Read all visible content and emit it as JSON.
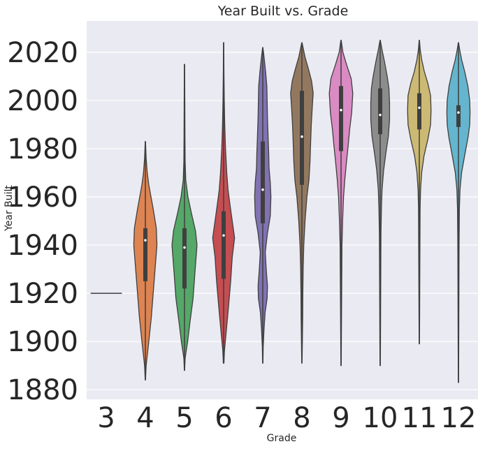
{
  "chart_data": {
    "type": "violin",
    "title": "Year Built vs. Grade",
    "xlabel": "Grade",
    "ylabel": "Year Built",
    "ylim": [
      1876,
      2033
    ],
    "yticks": [
      1880,
      1900,
      1920,
      1940,
      1960,
      1980,
      2000,
      2020
    ],
    "grid": true,
    "categories": [
      "3",
      "4",
      "5",
      "6",
      "7",
      "8",
      "9",
      "10",
      "11",
      "12"
    ],
    "series": [
      {
        "grade": "3",
        "color": "#4c72b0",
        "min": 1920,
        "max": 1920,
        "q1": 1920,
        "median": 1920,
        "q3": 1920,
        "profile": [
          [
            1920,
            1.0
          ]
        ],
        "flat": true
      },
      {
        "grade": "4",
        "color": "#dd8452",
        "min": 1884,
        "max": 1983,
        "q1": 1925,
        "median": 1942,
        "q3": 1947,
        "profile": [
          [
            1884,
            0.01
          ],
          [
            1890,
            0.05
          ],
          [
            1900,
            0.22
          ],
          [
            1910,
            0.38
          ],
          [
            1920,
            0.5
          ],
          [
            1930,
            0.62
          ],
          [
            1940,
            0.74
          ],
          [
            1947,
            0.7
          ],
          [
            1955,
            0.5
          ],
          [
            1960,
            0.36
          ],
          [
            1965,
            0.22
          ],
          [
            1970,
            0.12
          ],
          [
            1976,
            0.05
          ],
          [
            1983,
            0.01
          ]
        ]
      },
      {
        "grade": "5",
        "color": "#55a868",
        "min": 1888,
        "max": 2015,
        "q1": 1922,
        "median": 1939,
        "q3": 1947,
        "profile": [
          [
            1888,
            0.01
          ],
          [
            1893,
            0.04
          ],
          [
            1900,
            0.2
          ],
          [
            1908,
            0.35
          ],
          [
            1918,
            0.55
          ],
          [
            1928,
            0.66
          ],
          [
            1940,
            0.8
          ],
          [
            1946,
            0.7
          ],
          [
            1953,
            0.45
          ],
          [
            1960,
            0.22
          ],
          [
            1967,
            0.08
          ],
          [
            1975,
            0.04
          ],
          [
            1985,
            0.03
          ],
          [
            2000,
            0.02
          ],
          [
            2015,
            0.01
          ]
        ]
      },
      {
        "grade": "6",
        "color": "#c44e52",
        "min": 1891,
        "max": 2024,
        "q1": 1926,
        "median": 1944,
        "q3": 1954,
        "profile": [
          [
            1891,
            0.02
          ],
          [
            1896,
            0.05
          ],
          [
            1905,
            0.18
          ],
          [
            1915,
            0.32
          ],
          [
            1925,
            0.45
          ],
          [
            1935,
            0.55
          ],
          [
            1943,
            0.7
          ],
          [
            1950,
            0.55
          ],
          [
            1957,
            0.4
          ],
          [
            1963,
            0.28
          ],
          [
            1970,
            0.2
          ],
          [
            1980,
            0.12
          ],
          [
            1990,
            0.07
          ],
          [
            2000,
            0.04
          ],
          [
            2012,
            0.02
          ],
          [
            2024,
            0.01
          ]
        ]
      },
      {
        "grade": "7",
        "color": "#8172b2",
        "min": 1891,
        "max": 2022,
        "q1": 1949,
        "median": 1963,
        "q3": 1983,
        "profile": [
          [
            1891,
            0.01
          ],
          [
            1898,
            0.03
          ],
          [
            1905,
            0.08
          ],
          [
            1912,
            0.15
          ],
          [
            1918,
            0.28
          ],
          [
            1923,
            0.3
          ],
          [
            1930,
            0.22
          ],
          [
            1937,
            0.16
          ],
          [
            1945,
            0.3
          ],
          [
            1952,
            0.48
          ],
          [
            1960,
            0.52
          ],
          [
            1966,
            0.48
          ],
          [
            1972,
            0.4
          ],
          [
            1978,
            0.38
          ],
          [
            1985,
            0.34
          ],
          [
            1993,
            0.3
          ],
          [
            2000,
            0.28
          ],
          [
            2006,
            0.26
          ],
          [
            2012,
            0.18
          ],
          [
            2017,
            0.1
          ],
          [
            2022,
            0.01
          ]
        ]
      },
      {
        "grade": "8",
        "color": "#937860",
        "min": 1891,
        "max": 2024,
        "q1": 1965,
        "median": 1985,
        "q3": 2004,
        "profile": [
          [
            1891,
            0.01
          ],
          [
            1900,
            0.03
          ],
          [
            1910,
            0.05
          ],
          [
            1920,
            0.06
          ],
          [
            1930,
            0.08
          ],
          [
            1940,
            0.12
          ],
          [
            1950,
            0.2
          ],
          [
            1960,
            0.32
          ],
          [
            1967,
            0.45
          ],
          [
            1975,
            0.52
          ],
          [
            1983,
            0.56
          ],
          [
            1990,
            0.6
          ],
          [
            1997,
            0.66
          ],
          [
            2003,
            0.72
          ],
          [
            2008,
            0.62
          ],
          [
            2013,
            0.42
          ],
          [
            2018,
            0.2
          ],
          [
            2024,
            0.01
          ]
        ]
      },
      {
        "grade": "9",
        "color": "#da8bc3",
        "min": 1890,
        "max": 2025,
        "q1": 1979,
        "median": 1996,
        "q3": 2006,
        "profile": [
          [
            1890,
            0.01
          ],
          [
            1900,
            0.02
          ],
          [
            1910,
            0.03
          ],
          [
            1920,
            0.04
          ],
          [
            1930,
            0.05
          ],
          [
            1940,
            0.06
          ],
          [
            1950,
            0.1
          ],
          [
            1960,
            0.16
          ],
          [
            1967,
            0.24
          ],
          [
            1974,
            0.34
          ],
          [
            1981,
            0.45
          ],
          [
            1988,
            0.55
          ],
          [
            1995,
            0.68
          ],
          [
            2003,
            0.75
          ],
          [
            2009,
            0.65
          ],
          [
            2015,
            0.35
          ],
          [
            2020,
            0.12
          ],
          [
            2025,
            0.01
          ]
        ]
      },
      {
        "grade": "10",
        "color": "#8c8c8c",
        "min": 1890,
        "max": 2025,
        "q1": 1986,
        "median": 1994,
        "q3": 2005,
        "profile": [
          [
            1890,
            0.01
          ],
          [
            1900,
            0.02
          ],
          [
            1915,
            0.03
          ],
          [
            1930,
            0.04
          ],
          [
            1945,
            0.05
          ],
          [
            1955,
            0.08
          ],
          [
            1963,
            0.12
          ],
          [
            1971,
            0.22
          ],
          [
            1978,
            0.36
          ],
          [
            1985,
            0.52
          ],
          [
            1992,
            0.6
          ],
          [
            1999,
            0.6
          ],
          [
            2005,
            0.56
          ],
          [
            2010,
            0.45
          ],
          [
            2016,
            0.28
          ],
          [
            2021,
            0.12
          ],
          [
            2025,
            0.01
          ]
        ]
      },
      {
        "grade": "11",
        "color": "#ccb974",
        "min": 1899,
        "max": 2025,
        "q1": 1988,
        "median": 1997,
        "q3": 2003,
        "profile": [
          [
            1899,
            0.01
          ],
          [
            1910,
            0.02
          ],
          [
            1925,
            0.03
          ],
          [
            1940,
            0.04
          ],
          [
            1955,
            0.05
          ],
          [
            1963,
            0.08
          ],
          [
            1970,
            0.15
          ],
          [
            1977,
            0.3
          ],
          [
            1984,
            0.55
          ],
          [
            1990,
            0.72
          ],
          [
            1996,
            0.75
          ],
          [
            2002,
            0.72
          ],
          [
            2007,
            0.55
          ],
          [
            2012,
            0.32
          ],
          [
            2017,
            0.15
          ],
          [
            2021,
            0.06
          ],
          [
            2025,
            0.01
          ]
        ]
      },
      {
        "grade": "12",
        "color": "#64b5cd",
        "min": 1883,
        "max": 2024,
        "q1": 1989,
        "median": 1995,
        "q3": 1998,
        "profile": [
          [
            1883,
            0.01
          ],
          [
            1900,
            0.02
          ],
          [
            1920,
            0.03
          ],
          [
            1940,
            0.04
          ],
          [
            1955,
            0.06
          ],
          [
            1963,
            0.1
          ],
          [
            1970,
            0.2
          ],
          [
            1978,
            0.42
          ],
          [
            1985,
            0.62
          ],
          [
            1990,
            0.72
          ],
          [
            1995,
            0.74
          ],
          [
            2000,
            0.72
          ],
          [
            2006,
            0.6
          ],
          [
            2012,
            0.4
          ],
          [
            2017,
            0.2
          ],
          [
            2021,
            0.08
          ],
          [
            2024,
            0.01
          ]
        ]
      }
    ]
  }
}
